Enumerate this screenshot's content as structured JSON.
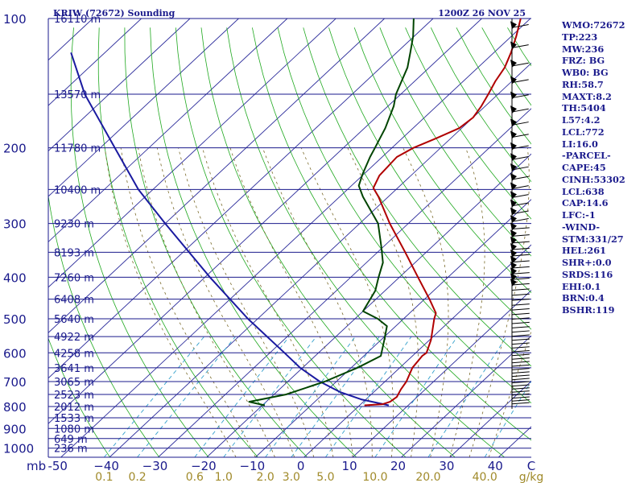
{
  "chart_data": {
    "type": "skew-t sounding",
    "title_left": "KRIW (72672) Sounding",
    "title_right": "1200Z 26 NOV 25",
    "pressure_unit_label": "mb",
    "pressure_levels": [
      100,
      200,
      300,
      400,
      500,
      600,
      700,
      800,
      900,
      1000
    ],
    "pressure_tick_labels": [
      "100",
      "200",
      "300",
      "400",
      "500",
      "600",
      "700",
      "800",
      "900",
      "1000"
    ],
    "height_labels": [
      {
        "p": 100,
        "text": "16110 m"
      },
      {
        "p": 150,
        "text": "13570 m"
      },
      {
        "p": 200,
        "text": "11780 m"
      },
      {
        "p": 250,
        "text": "10400 m"
      },
      {
        "p": 300,
        "text": "9230 m"
      },
      {
        "p": 350,
        "text": "8193 m"
      },
      {
        "p": 400,
        "text": "7260 m"
      },
      {
        "p": 450,
        "text": "6408 m"
      },
      {
        "p": 500,
        "text": "5640 m"
      },
      {
        "p": 550,
        "text": "4922 m"
      },
      {
        "p": 600,
        "text": "4258 m"
      },
      {
        "p": 650,
        "text": "3641 m"
      },
      {
        "p": 700,
        "text": "3065 m"
      },
      {
        "p": 750,
        "text": "2523 m"
      },
      {
        "p": 800,
        "text": "2012 m"
      },
      {
        "p": 850,
        "text": "1533 m"
      },
      {
        "p": 900,
        "text": "1080 m"
      },
      {
        "p": 950,
        "text": "649 m"
      },
      {
        "p": 1000,
        "text": "236 m"
      }
    ],
    "temperature_ticks": [
      -50,
      -40,
      -30,
      -20,
      -10,
      0,
      10,
      20,
      30,
      40
    ],
    "temperature_tick_labels": [
      "-50",
      "−40",
      "−30",
      "−20",
      "−10",
      "0",
      "10",
      "20",
      "30",
      "40"
    ],
    "temperature_unit_label": "C",
    "mixing_ratio_ticks": [
      0.1,
      0.2,
      0.6,
      1.0,
      2.0,
      3.0,
      5.0,
      10.0,
      20.0,
      40.0
    ],
    "mixing_ratio_tick_labels": [
      "0.1",
      "0.2",
      "0.6",
      "1.0",
      "2.0",
      "3.0",
      "5.0",
      "10.0",
      "20.0",
      "40.0"
    ],
    "mixing_ratio_unit_label": "g/kg",
    "temperature_profile": [
      {
        "p": 795,
        "t": 1.0
      },
      {
        "p": 790,
        "t": 4.5
      },
      {
        "p": 780,
        "t": 5.5
      },
      {
        "p": 760,
        "t": 5.8
      },
      {
        "p": 730,
        "t": 5.0
      },
      {
        "p": 700,
        "t": 4.4
      },
      {
        "p": 650,
        "t": 2.6
      },
      {
        "p": 610,
        "t": 2.0
      },
      {
        "p": 600,
        "t": 2.2
      },
      {
        "p": 560,
        "t": 0.3
      },
      {
        "p": 500,
        "t": -3.7
      },
      {
        "p": 485,
        "t": -4.6
      },
      {
        "p": 450,
        "t": -9.0
      },
      {
        "p": 400,
        "t": -16.2
      },
      {
        "p": 350,
        "t": -24.3
      },
      {
        "p": 300,
        "t": -33.8
      },
      {
        "p": 260,
        "t": -42.0
      },
      {
        "p": 248,
        "t": -45.0
      },
      {
        "p": 232,
        "t": -46.5
      },
      {
        "p": 210,
        "t": -47.0
      },
      {
        "p": 200,
        "t": -45.6
      },
      {
        "p": 190,
        "t": -43.0
      },
      {
        "p": 180,
        "t": -40.5
      },
      {
        "p": 170,
        "t": -40.0
      },
      {
        "p": 160,
        "t": -40.8
      },
      {
        "p": 150,
        "t": -42.0
      },
      {
        "p": 140,
        "t": -43.4
      },
      {
        "p": 130,
        "t": -44.5
      },
      {
        "p": 120,
        "t": -46.5
      },
      {
        "p": 110,
        "t": -49.0
      },
      {
        "p": 100,
        "t": -52.0
      }
    ],
    "dewpoint_profile": [
      {
        "p": 795,
        "t": -19.5
      },
      {
        "p": 780,
        "t": -23.5
      },
      {
        "p": 750,
        "t": -17.5
      },
      {
        "p": 700,
        "t": -12.4
      },
      {
        "p": 650,
        "t": -8.7
      },
      {
        "p": 610,
        "t": -6.5
      },
      {
        "p": 560,
        "t": -9.3
      },
      {
        "p": 520,
        "t": -11.8
      },
      {
        "p": 500,
        "t": -15.3
      },
      {
        "p": 480,
        "t": -20.0
      },
      {
        "p": 430,
        "t": -22.0
      },
      {
        "p": 400,
        "t": -24.3
      },
      {
        "p": 370,
        "t": -26.6
      },
      {
        "p": 340,
        "t": -30.4
      },
      {
        "p": 300,
        "t": -36.2
      },
      {
        "p": 260,
        "t": -45.2
      },
      {
        "p": 245,
        "t": -48.5
      },
      {
        "p": 230,
        "t": -50.3
      },
      {
        "p": 210,
        "t": -52.5
      },
      {
        "p": 200,
        "t": -53.5
      },
      {
        "p": 180,
        "t": -55.7
      },
      {
        "p": 160,
        "t": -58.8
      },
      {
        "p": 150,
        "t": -61.0
      },
      {
        "p": 130,
        "t": -64.5
      },
      {
        "p": 120,
        "t": -67.2
      },
      {
        "p": 110,
        "t": -70.2
      },
      {
        "p": 100,
        "t": -74.0
      }
    ],
    "parcel_path": [
      {
        "p": 795,
        "t": 6.0
      },
      {
        "p": 770,
        "t": -1.0
      },
      {
        "p": 740,
        "t": -7.0
      },
      {
        "p": 700,
        "t": -13.4
      },
      {
        "p": 650,
        "t": -20.5
      },
      {
        "p": 600,
        "t": -27.0
      },
      {
        "p": 500,
        "t": -42.0
      },
      {
        "p": 400,
        "t": -59.0
      },
      {
        "p": 300,
        "t": -80.0
      },
      {
        "p": 250,
        "t": -93.0
      },
      {
        "p": 200,
        "t": -107.0
      },
      {
        "p": 150,
        "t": -125.0
      },
      {
        "p": 120,
        "t": -137.0
      }
    ],
    "series_colors": {
      "temperature": "#b00000",
      "dewpoint": "#004400",
      "parcel": "#1a1aa0"
    }
  },
  "indices": [
    "WMO:72672",
    "TP:223",
    "MW:236",
    "FRZ: BG",
    "WB0: BG",
    "RH:58.7",
    "MAXT:8.2",
    "TH:5404",
    "L57:4.2",
    "LCL:772",
    "LI:16.0",
    "-PARCEL-",
    "CAPE:45",
    "CINH:53302",
    "LCL:638",
    "CAP:14.6",
    "LFC:-1",
    "-WIND-",
    "STM:331/27",
    "HEL:261",
    "SHR+:0.0",
    "SRDS:116",
    "EHI:0.1",
    "BRN:0.4",
    "BSHR:119"
  ]
}
